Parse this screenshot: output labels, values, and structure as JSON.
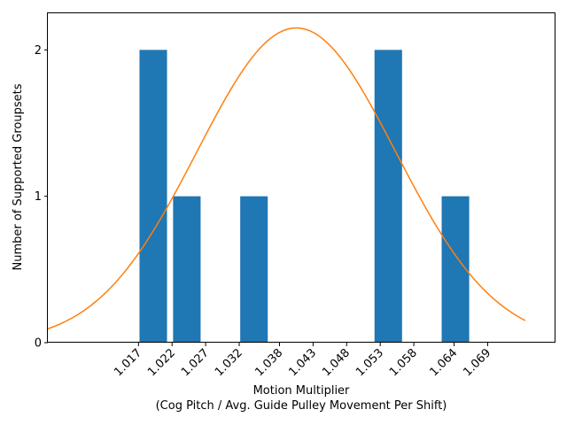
{
  "chart_data": {
    "type": "bar",
    "xlabel_line1": "Motion Multiplier",
    "xlabel_line2": "(Cog Pitch / Avg. Guide Pulley Movement Per Shift)",
    "ylabel": "Number of Supported Groupsets",
    "x_tick_labels": [
      "1.017",
      "1.022",
      "1.027",
      "1.032",
      "1.038",
      "1.043",
      "1.048",
      "1.053",
      "1.058",
      "1.064",
      "1.069"
    ],
    "x_ticks": [
      1.017,
      1.022,
      1.027,
      1.032,
      1.038,
      1.043,
      1.048,
      1.053,
      1.058,
      1.064,
      1.069
    ],
    "xlim": [
      1.0035,
      1.0791
    ],
    "y_ticks": [
      0,
      1,
      2
    ],
    "ylim": [
      0,
      2.25
    ],
    "bars": [
      {
        "x": 1.0192,
        "value": 2
      },
      {
        "x": 1.0242,
        "value": 1
      },
      {
        "x": 1.0342,
        "value": 1
      },
      {
        "x": 1.0542,
        "value": 2
      },
      {
        "x": 1.0642,
        "value": 1
      }
    ],
    "bar_width": 0.0041,
    "bar_color": "#1f77b4",
    "curve": {
      "color": "#ff7f0e",
      "mean": 1.0405,
      "sd": 0.0148,
      "peak": 2.15,
      "x_range": [
        1.0035,
        1.0746
      ]
    },
    "grid": false,
    "legend": "none"
  }
}
